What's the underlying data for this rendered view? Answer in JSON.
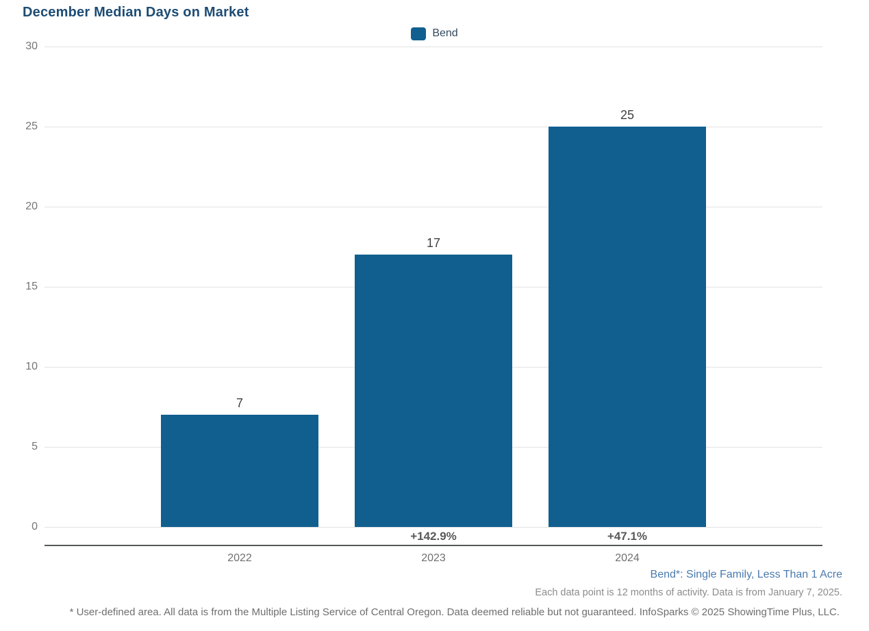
{
  "chart_data": {
    "type": "bar",
    "title": "December Median Days on Market",
    "legend": {
      "label": "Bend",
      "position": "top-center"
    },
    "categories": [
      "2022",
      "2023",
      "2024"
    ],
    "values": [
      7,
      17,
      25
    ],
    "bar_value_labels": [
      "7",
      "17",
      "25"
    ],
    "pct_change_labels": [
      "",
      "+142.9%",
      "+47.1%"
    ],
    "y_ticks": [
      0,
      5,
      10,
      15,
      20,
      25,
      30
    ],
    "ylim": [
      0,
      30
    ],
    "grid": true,
    "xlabel": "",
    "ylabel": "",
    "colors": {
      "bar": "#105f8f",
      "title": "#1d4c74",
      "gridline": "#e2e2e2",
      "axis_line": "#54575a",
      "tick_label": "#757575",
      "value_label": "#3f3f3f",
      "pct_label": "#58595b",
      "series_note": "#4a7aae"
    }
  },
  "footnotes": {
    "series_note": "Bend*: Single Family, Less Than 1 Acre",
    "activity_note": "Each data point is 12 months of activity. Data is from January 7, 2025.",
    "disclaimer": "* User-defined area. All data is from the Multiple Listing Service of Central Oregon. Data deemed reliable but not guaranteed. InfoSparks © 2025 ShowingTime Plus, LLC."
  }
}
